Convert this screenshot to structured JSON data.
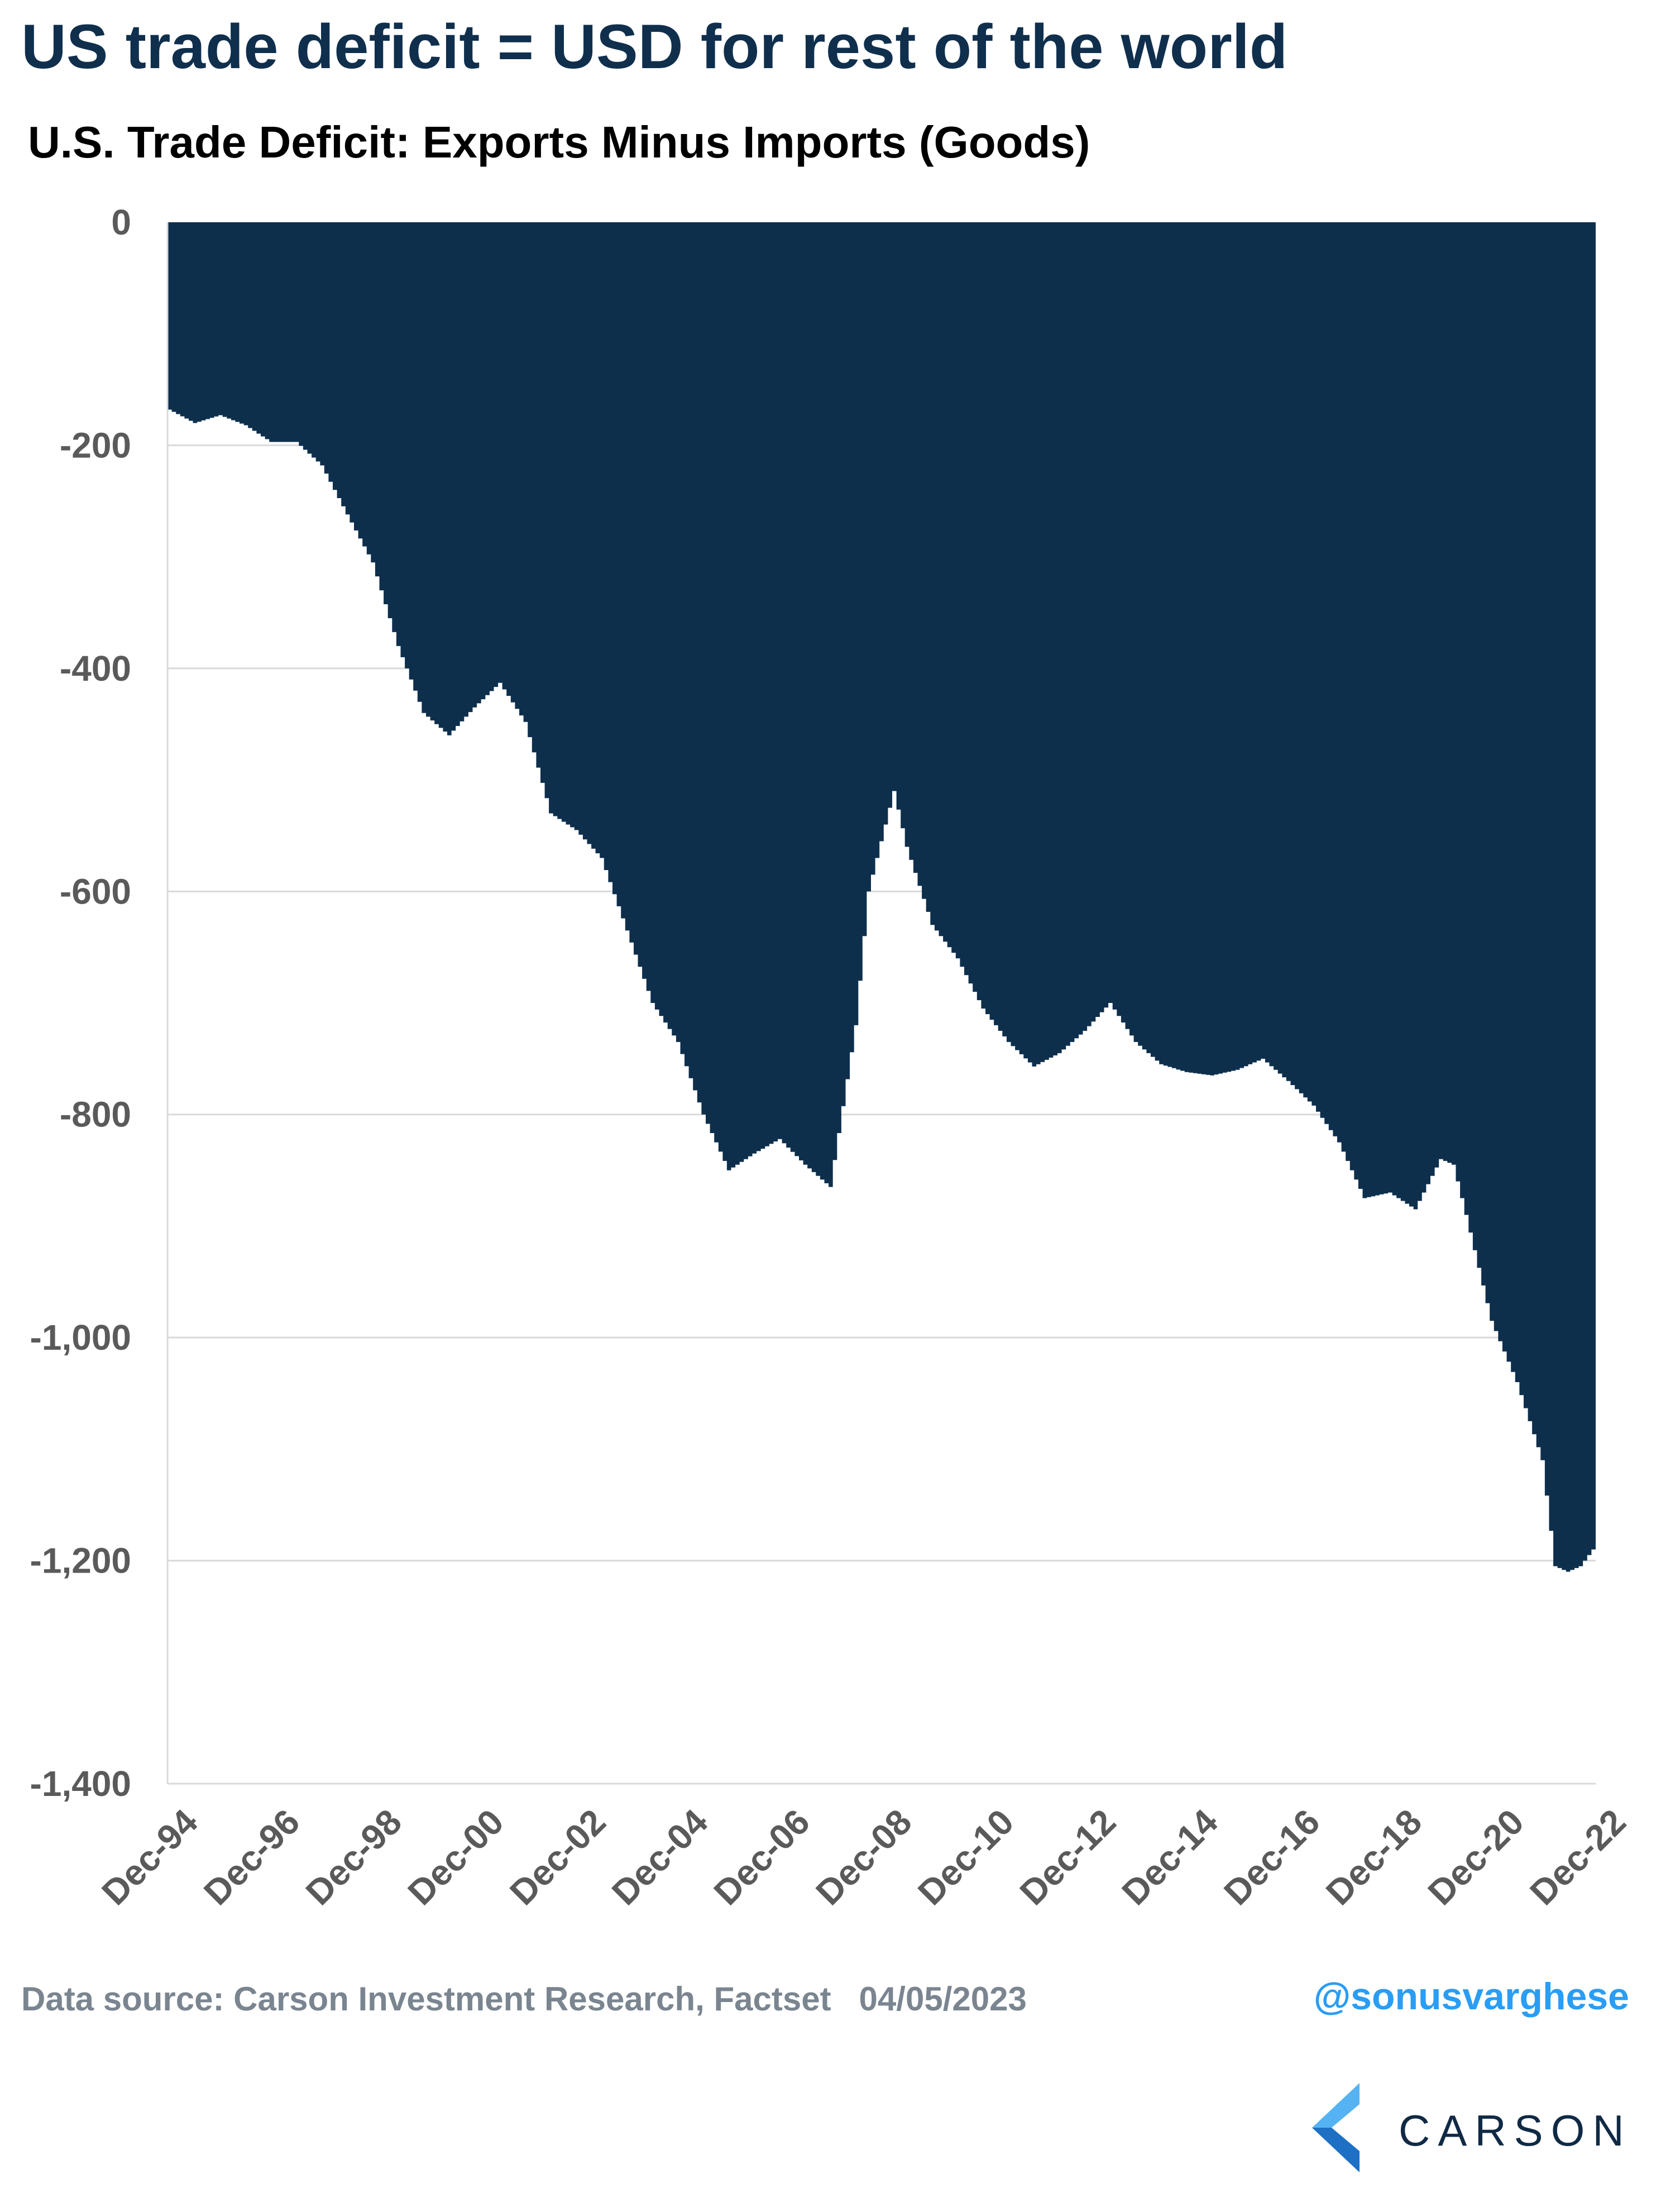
{
  "header": {
    "headline": "US trade deficit = USD for rest of the world",
    "subtitle": "U.S. Trade Deficit: Exports Minus Imports (Goods)"
  },
  "footer": {
    "source": "Data source: Carson Investment Research, Factset   04/05/2023",
    "handle": "@sonusvarghese",
    "logo_text": "CARSON"
  },
  "colors": {
    "fill": "#0e2f4c",
    "gridline": "#d9d9d9",
    "tick_text": "#5a5a5a",
    "handle": "#2a9df4",
    "logo_light": "#55b3f3",
    "logo_dark": "#1d70c4"
  },
  "chart_data": {
    "type": "area",
    "title": "U.S. Trade Deficit: Exports Minus Imports (Goods)",
    "xlabel": "",
    "ylabel": "",
    "ylim": [
      -1400,
      0
    ],
    "y_ticks": [
      0,
      -200,
      -400,
      -600,
      -800,
      -1000,
      -1200,
      -1400
    ],
    "y_tick_labels": [
      "0",
      "-200",
      "-400",
      "-600",
      "-800",
      "-1,000",
      "-1,200",
      "-1,400"
    ],
    "x_tick_labels": [
      "Dec-94",
      "Dec-96",
      "Dec-98",
      "Dec-00",
      "Dec-02",
      "Dec-04",
      "Dec-06",
      "Dec-08",
      "Dec-10",
      "Dec-12",
      "Dec-14",
      "Dec-16",
      "Dec-18",
      "Dec-20",
      "Dec-22"
    ],
    "x_range": [
      "1994-12",
      "2022-12"
    ],
    "grid": true,
    "legend": "none",
    "series": [
      {
        "x": [
          "1994-12",
          "1995-06",
          "1995-12",
          "1996-06",
          "1996-12",
          "1997-06",
          "1997-12",
          "1998-06",
          "1998-12",
          "1999-06",
          "1999-12",
          "2000-06",
          "2000-12",
          "2001-06",
          "2001-12",
          "2002-06",
          "2002-12",
          "2003-06",
          "2003-12",
          "2004-06",
          "2004-12",
          "2005-06",
          "2005-12",
          "2006-06",
          "2006-12",
          "2007-06",
          "2007-12",
          "2008-06",
          "2008-09",
          "2009-03",
          "2009-06",
          "2009-12",
          "2010-06",
          "2010-12",
          "2011-06",
          "2011-12",
          "2012-06",
          "2012-12",
          "2013-06",
          "2013-12",
          "2014-06",
          "2014-12",
          "2015-06",
          "2015-12",
          "2016-06",
          "2016-12",
          "2017-06",
          "2017-12",
          "2018-06",
          "2018-12",
          "2019-06",
          "2019-12",
          "2020-03",
          "2020-06",
          "2020-12",
          "2021-06",
          "2021-12",
          "2022-03",
          "2022-06",
          "2022-09",
          "2022-12"
        ],
        "y": [
          -168,
          -180,
          -173,
          -182,
          -197,
          -197,
          -218,
          -262,
          -305,
          -380,
          -440,
          -460,
          -435,
          -413,
          -448,
          -530,
          -545,
          -570,
          -635,
          -700,
          -735,
          -800,
          -850,
          -835,
          -822,
          -845,
          -865,
          -720,
          -600,
          -510,
          -560,
          -630,
          -660,
          -705,
          -735,
          -757,
          -745,
          -725,
          -700,
          -735,
          -755,
          -762,
          -765,
          -760,
          -750,
          -770,
          -792,
          -825,
          -875,
          -870,
          -885,
          -840,
          -845,
          -890,
          -985,
          -1040,
          -1110,
          -1205,
          -1210,
          -1205,
          -1190
        ]
      }
    ]
  }
}
